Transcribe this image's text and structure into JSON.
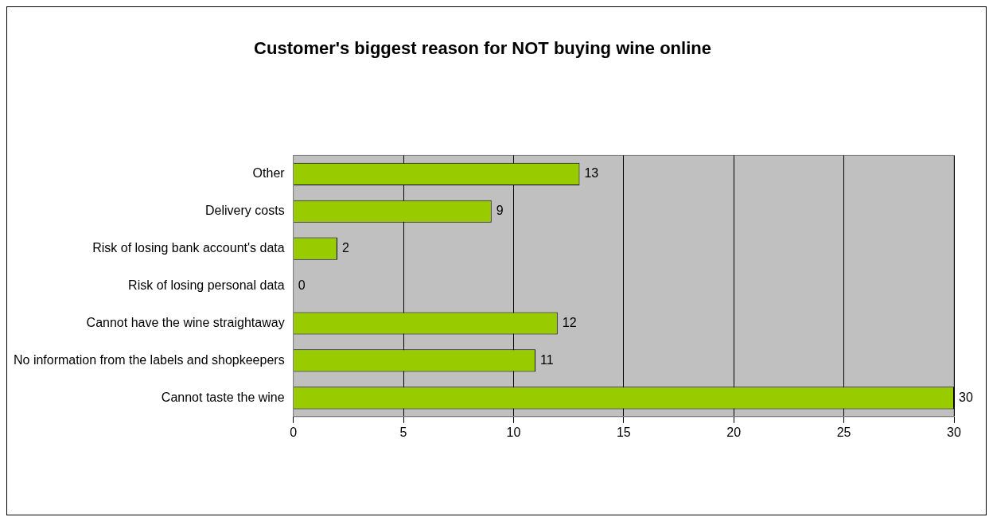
{
  "chart_data": {
    "type": "bar",
    "orientation": "horizontal",
    "title": "Customer's biggest reason for NOT buying wine online",
    "categories": [
      "Other",
      "Delivery costs",
      "Risk of losing bank account's data",
      "Risk of losing personal data",
      "Cannot have the wine straightaway",
      "No information from the labels and shopkeepers",
      "Cannot taste the wine"
    ],
    "values": [
      13,
      9,
      2,
      0,
      12,
      11,
      30
    ],
    "color": "#99cc00",
    "xlim": [
      0,
      30
    ],
    "xticks": [
      0,
      5,
      10,
      15,
      20,
      25,
      30
    ],
    "grid": "x",
    "data_labels": true,
    "legend": false
  }
}
